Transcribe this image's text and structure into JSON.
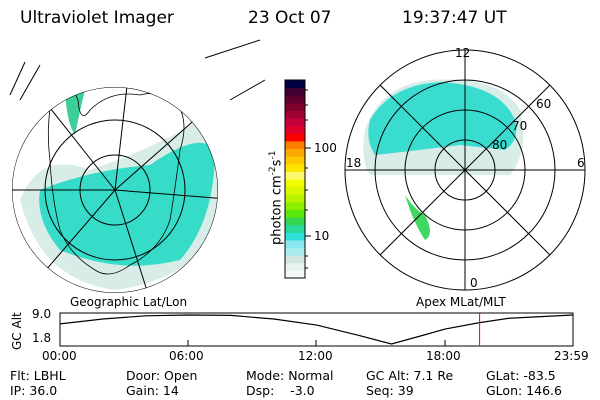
{
  "header": {
    "instrument": "Ultraviolet Imager",
    "date": "23 Oct 07",
    "time": "19:37:47 UT"
  },
  "left_map": {
    "label": "Geographic Lat/Lon"
  },
  "right_map": {
    "label": "Apex MLat/MLT",
    "mlt_labels": [
      "12",
      "18",
      "6",
      "0"
    ],
    "lat_labels": [
      "80",
      "70",
      "60"
    ]
  },
  "colorbar": {
    "label": "photon cm",
    "exp1": "-2",
    "s": "s",
    "exp2": "-1",
    "ticks": [
      "100",
      "10"
    ],
    "colors": [
      "#f4f9f6",
      "#e6f2ec",
      "#d3e6e2",
      "#a6ecee",
      "#8ae8f0",
      "#2de0d8",
      "#2cd89a",
      "#33d84e",
      "#5ae80e",
      "#8cf000",
      "#b6f400",
      "#d8f800",
      "#f2fc00",
      "#fcf86e",
      "#fce400",
      "#fcc800",
      "#fca800",
      "#fc8000",
      "#fc0000",
      "#e0002c",
      "#c80038",
      "#a00034",
      "#80002c",
      "#600030",
      "#400030",
      "#000040"
    ]
  },
  "alt_plot": {
    "ylabel": "GC Alt",
    "yticks": [
      "9.0",
      "1.8"
    ],
    "xticks": [
      "00:00",
      "06:00",
      "12:00",
      "18:00",
      "23:59"
    ],
    "marker_color": "#ff0000"
  },
  "chart_data": {
    "type": "line",
    "ylabel": "GC Alt",
    "xlabel": "",
    "ylim": [
      1.8,
      9.0
    ],
    "x": [
      "00:00",
      "02:00",
      "04:00",
      "06:00",
      "08:00",
      "10:00",
      "12:00",
      "14:00",
      "15:30",
      "17:00",
      "18:00",
      "19:37",
      "21:00",
      "23:59"
    ],
    "values": [
      6.8,
      8.0,
      8.8,
      9.0,
      8.9,
      8.0,
      6.5,
      3.9,
      1.8,
      4.0,
      5.5,
      7.1,
      8.2,
      9.0
    ],
    "marker_time": "19:37"
  },
  "status": {
    "filter": "Flt: LBHL",
    "ip": "IP: 36.0",
    "door": "Door: Open",
    "gain": "Gain: 14",
    "mode": "Mode: Normal",
    "dsp": "Dsp:    -3.0",
    "gc_alt": "GC Alt: 7.1 Re",
    "seq": "Seq: 39",
    "glat": "GLat: -83.5",
    "glon": "GLon: 146.6"
  }
}
